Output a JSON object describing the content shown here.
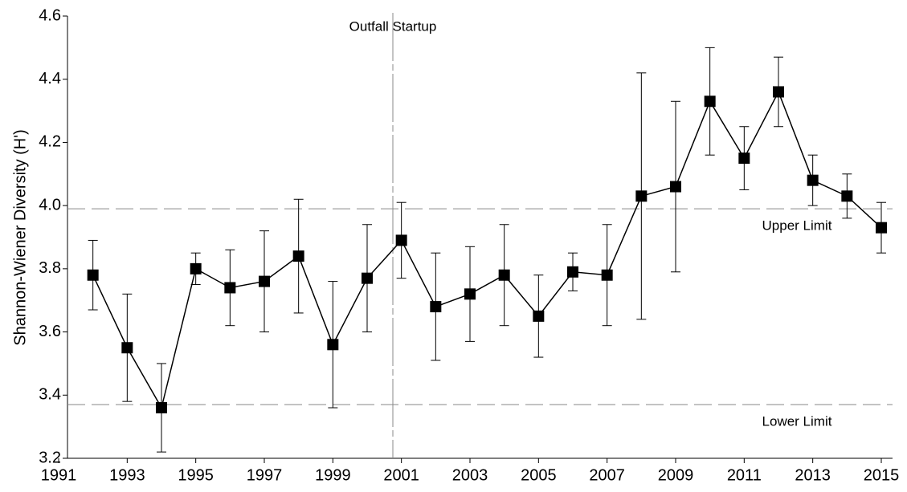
{
  "chart_data": {
    "type": "line",
    "y_label": "Shannon-Wiener Diversity (H')",
    "x": [
      1992,
      1993,
      1994,
      1995,
      1996,
      1997,
      1998,
      1999,
      2000,
      2001,
      2002,
      2003,
      2004,
      2005,
      2006,
      2007,
      2008,
      2009,
      2010,
      2011,
      2012,
      2013,
      2014,
      2015
    ],
    "values": [
      3.78,
      3.55,
      3.36,
      3.8,
      3.74,
      3.76,
      3.84,
      3.56,
      3.77,
      3.89,
      3.68,
      3.72,
      3.78,
      3.65,
      3.79,
      3.78,
      4.03,
      4.06,
      4.33,
      4.15,
      4.36,
      4.08,
      4.03,
      3.93
    ],
    "errors": [
      0.11,
      0.17,
      0.14,
      0.05,
      0.12,
      0.16,
      0.18,
      0.2,
      0.17,
      0.12,
      0.17,
      0.15,
      0.16,
      0.13,
      0.06,
      0.16,
      0.39,
      0.27,
      0.17,
      0.1,
      0.11,
      0.08,
      0.07,
      0.08
    ],
    "color": "#000000",
    "xlim": [
      1991,
      2015
    ],
    "xticks": [
      1991,
      1993,
      1995,
      1997,
      1999,
      2001,
      2003,
      2005,
      2007,
      2009,
      2011,
      2013,
      2015
    ],
    "ylim": [
      3.2,
      4.6
    ],
    "yticks": [
      3.2,
      3.4,
      3.6,
      3.8,
      {
        "value": 4,
        "label": "4.0"
      },
      4.2,
      4.4,
      4.6
    ],
    "reference_lines": [
      {
        "value": 3.99,
        "label": "Upper Limit"
      },
      {
        "value": 3.37,
        "label": "Lower Limit"
      }
    ],
    "vline": {
      "value": 2000.75,
      "label": "Outfall Startup"
    }
  }
}
